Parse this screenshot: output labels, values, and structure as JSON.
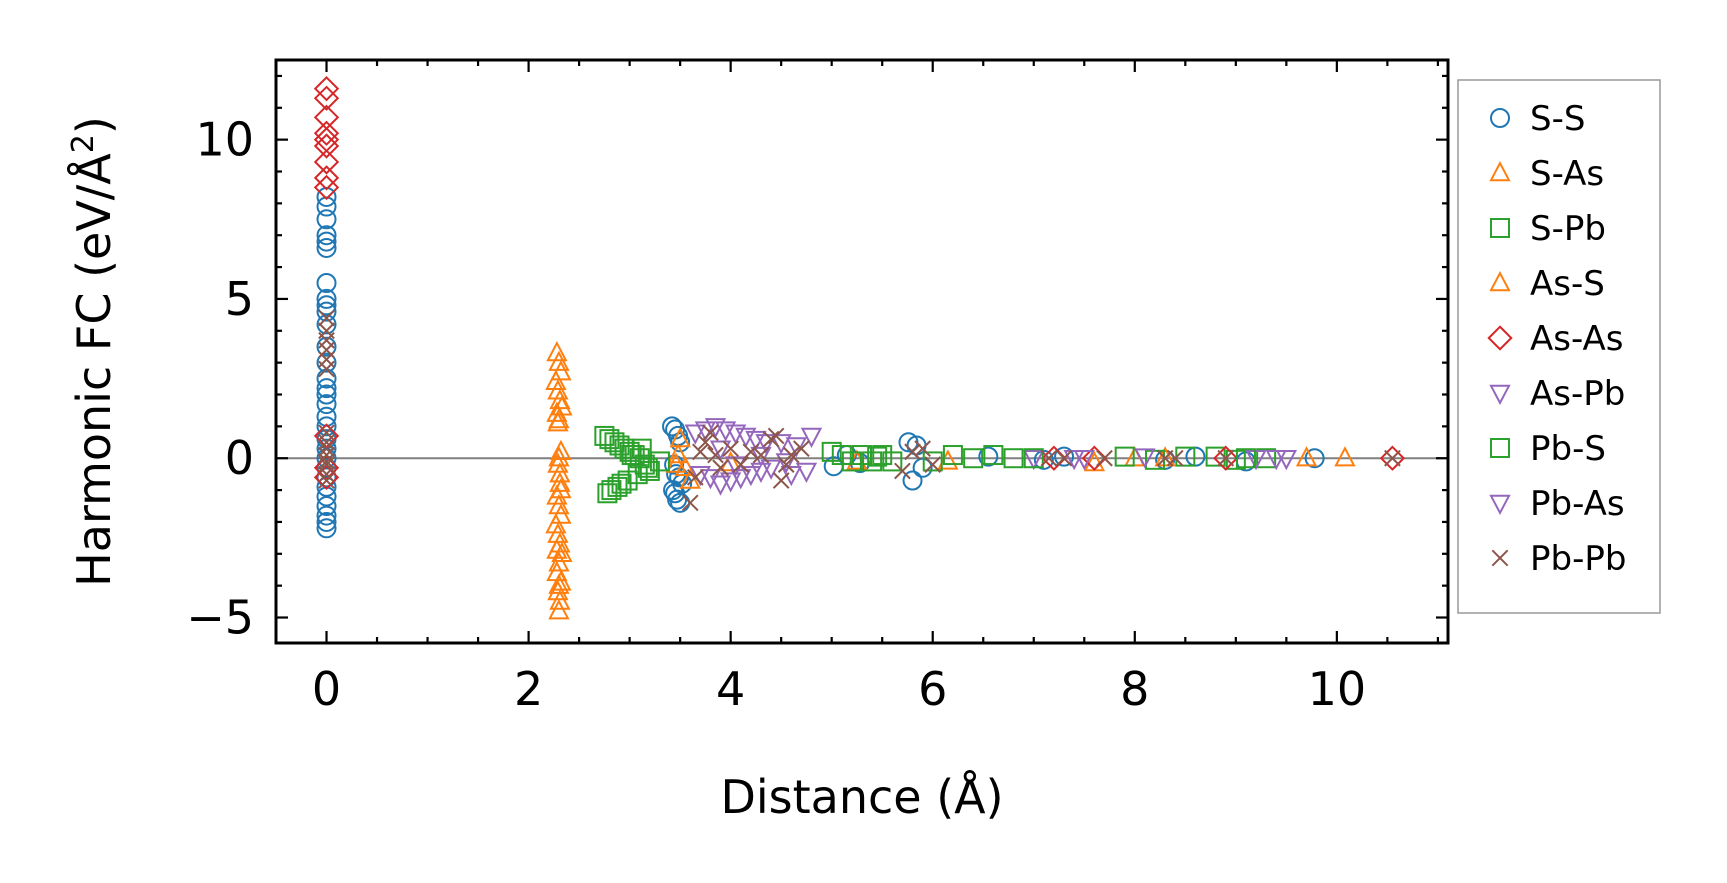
{
  "chart_data": {
    "type": "scatter",
    "xlabel": "Distance (Å)",
    "ylabel": "Harmonic FC (eV/Å²)",
    "ylabel_main": "Harmonic FC (eV/Å",
    "ylabel_sup": "2",
    "ylabel_close": ")",
    "xlim": [
      -0.5,
      11.1
    ],
    "ylim": [
      -5.8,
      12.5
    ],
    "xticks": [
      0,
      2,
      4,
      6,
      8,
      10
    ],
    "xtick_labels": [
      "0",
      "2",
      "4",
      "6",
      "8",
      "10"
    ],
    "yticks": [
      -5,
      0,
      5,
      10
    ],
    "ytick_labels": [
      "−5",
      "0",
      "5",
      "10"
    ],
    "zero_line": true,
    "grid": false,
    "legend_position": "outside-right",
    "series": [
      {
        "name": "S-S",
        "marker": "circle",
        "color": "#1f77b4",
        "x": [
          0,
          0,
          0,
          0,
          0,
          0,
          0,
          0,
          0,
          0,
          0,
          0,
          0,
          0,
          0,
          0,
          0,
          0,
          0,
          0,
          0,
          0,
          0,
          0,
          0,
          0,
          0,
          0,
          0,
          0,
          3.42,
          3.45,
          3.48,
          3.5,
          3.44,
          3.46,
          3.52,
          3.43,
          3.47,
          3.5,
          3.45,
          3.49,
          5.02,
          5.15,
          5.28,
          5.76,
          5.8,
          5.84,
          5.9,
          6.55,
          7.1,
          7.3,
          8.3,
          8.6,
          9.1,
          9.78
        ],
        "y": [
          8.2,
          7.9,
          7.5,
          7.0,
          6.8,
          6.6,
          5.5,
          5.0,
          4.8,
          4.6,
          4.2,
          3.5,
          3.0,
          2.5,
          2.2,
          2.0,
          1.7,
          1.3,
          1.0,
          0.6,
          0.3,
          0.0,
          -0.3,
          -0.6,
          -0.9,
          -1.2,
          -1.5,
          -1.8,
          -2.0,
          -2.2,
          1.0,
          0.9,
          0.7,
          0.5,
          -0.2,
          -0.5,
          -0.8,
          -1.0,
          -1.3,
          -1.4,
          -1.1,
          -0.6,
          -0.25,
          0.1,
          -0.15,
          0.5,
          -0.7,
          0.4,
          -0.3,
          0.05,
          -0.05,
          0.05,
          -0.05,
          0.05,
          -0.1,
          0.0
        ]
      },
      {
        "name": "S-As",
        "marker": "triangle-up",
        "color": "#ff7f0e",
        "x": [
          2.28,
          2.3,
          2.32,
          2.27,
          2.29,
          2.31,
          2.33,
          2.28,
          2.3,
          2.32,
          2.29,
          2.31,
          2.28,
          2.3,
          2.32,
          2.27,
          2.29,
          2.31,
          2.33,
          2.3,
          2.28,
          2.32,
          2.29,
          2.31,
          2.3,
          2.28,
          2.32,
          2.3,
          3.46,
          3.48,
          4.0,
          5.25,
          6.15,
          7.6,
          8.0,
          8.3,
          9.7,
          10.08
        ],
        "y": [
          3.3,
          3.0,
          2.7,
          2.4,
          2.1,
          1.8,
          1.6,
          1.4,
          1.2,
          0.2,
          -0.2,
          -0.8,
          -1.2,
          -1.5,
          -1.8,
          -2.1,
          -2.4,
          -2.7,
          -3.0,
          -3.3,
          -3.6,
          -3.9,
          -4.2,
          -4.5,
          -4.8,
          -2.9,
          -1.0,
          0.0,
          -0.2,
          0.1,
          -0.15,
          -0.1,
          -0.1,
          -0.15,
          0.0,
          0.0,
          0.0,
          0.0
        ]
      },
      {
        "name": "S-Pb",
        "marker": "square",
        "color": "#2ca02c",
        "x": [
          2.75,
          2.8,
          2.85,
          2.9,
          2.95,
          3.0,
          3.05,
          3.1,
          3.15,
          3.2,
          2.78,
          2.88,
          2.98,
          3.08,
          3.18,
          3.3,
          5.0,
          5.1,
          5.2,
          5.3,
          5.4,
          5.5,
          5.6,
          6.2,
          6.4,
          6.6,
          6.8,
          7.9,
          8.2,
          8.5,
          8.8,
          9.0,
          9.3
        ],
        "y": [
          0.7,
          0.6,
          0.5,
          0.4,
          0.3,
          0.2,
          0.1,
          0.0,
          -0.2,
          -0.4,
          -1.1,
          -0.9,
          -0.7,
          -0.5,
          -0.3,
          -0.1,
          0.2,
          0.1,
          -0.1,
          0.1,
          -0.1,
          0.1,
          -0.1,
          0.1,
          0.0,
          0.1,
          0.0,
          0.05,
          -0.05,
          0.05,
          0.05,
          -0.05,
          0.0
        ]
      },
      {
        "name": "As-S",
        "marker": "triangle-up",
        "color": "#ff7f0e",
        "x": [
          2.29,
          2.31,
          2.3,
          3.5,
          3.55,
          3.6
        ],
        "y": [
          1.1,
          -0.5,
          -4.0,
          0.6,
          -0.3,
          -0.7
        ]
      },
      {
        "name": "As-As",
        "marker": "diamond",
        "color": "#d62728",
        "x": [
          0,
          0,
          0,
          0,
          0,
          0,
          0,
          0,
          0,
          0,
          0,
          0,
          7.2,
          7.6,
          8.9,
          10.55
        ],
        "y": [
          11.6,
          11.3,
          10.7,
          10.2,
          10.0,
          9.8,
          9.3,
          8.8,
          8.5,
          0.7,
          -0.3,
          -0.6,
          0.0,
          0.0,
          0.0,
          0.0
        ]
      },
      {
        "name": "As-Pb",
        "marker": "triangle-down",
        "color": "#9467bd",
        "x": [
          3.65,
          3.75,
          3.85,
          3.95,
          4.05,
          4.15,
          4.25,
          4.35,
          4.5,
          4.65,
          4.8,
          3.7,
          3.8,
          3.9,
          4.0,
          4.1,
          4.2,
          4.3,
          4.4,
          4.6,
          4.75,
          7.0,
          7.5,
          8.1,
          9.2,
          9.5
        ],
        "y": [
          0.8,
          0.9,
          1.0,
          0.9,
          0.8,
          0.7,
          0.6,
          0.5,
          0.5,
          0.4,
          0.7,
          -0.5,
          -0.6,
          -0.8,
          -0.7,
          -0.6,
          -0.5,
          -0.4,
          -0.3,
          -0.5,
          -0.4,
          0.0,
          0.0,
          0.05,
          0.0,
          0.0
        ]
      },
      {
        "name": "Pb-S",
        "marker": "square",
        "color": "#2ca02c",
        "x": [
          2.82,
          2.92,
          3.02,
          3.12,
          5.45,
          6.0,
          7.0,
          9.1
        ],
        "y": [
          -1.0,
          -0.8,
          0.1,
          0.3,
          0.05,
          -0.1,
          0.0,
          0.0
        ]
      },
      {
        "name": "Pb-As",
        "marker": "triangle-down",
        "color": "#9467bd",
        "x": [
          3.9,
          4.05,
          4.3,
          4.55,
          7.4,
          9.4
        ],
        "y": [
          0.3,
          -0.2,
          0.1,
          -0.1,
          0.0,
          0.0
        ]
      },
      {
        "name": "Pb-Pb",
        "marker": "x",
        "color": "#8c564b",
        "x": [
          0,
          0,
          0,
          0,
          0,
          0,
          0,
          0,
          0,
          0,
          0,
          0,
          0,
          0,
          3.6,
          3.65,
          3.7,
          3.75,
          3.8,
          3.85,
          3.9,
          4.0,
          4.1,
          4.2,
          4.3,
          4.4,
          4.45,
          4.5,
          4.55,
          4.6,
          4.7,
          5.7,
          5.8,
          5.9,
          6.0,
          7.15,
          7.3,
          7.7,
          8.3,
          8.4,
          8.9,
          10.55
        ],
        "y": [
          4.4,
          4.0,
          3.7,
          3.4,
          3.1,
          2.8,
          0.5,
          0.1,
          -0.2,
          -0.5,
          -0.7,
          0.3,
          -0.1,
          0.8,
          -1.4,
          -0.6,
          0.2,
          0.5,
          0.8,
          0.1,
          -0.3,
          0.3,
          -0.2,
          0.2,
          0.1,
          0.6,
          0.7,
          -0.7,
          -0.2,
          0.1,
          0.3,
          -0.4,
          0.2,
          0.3,
          -0.2,
          0.0,
          0.0,
          0.0,
          0.0,
          0.0,
          0.0,
          0.0
        ]
      }
    ]
  }
}
